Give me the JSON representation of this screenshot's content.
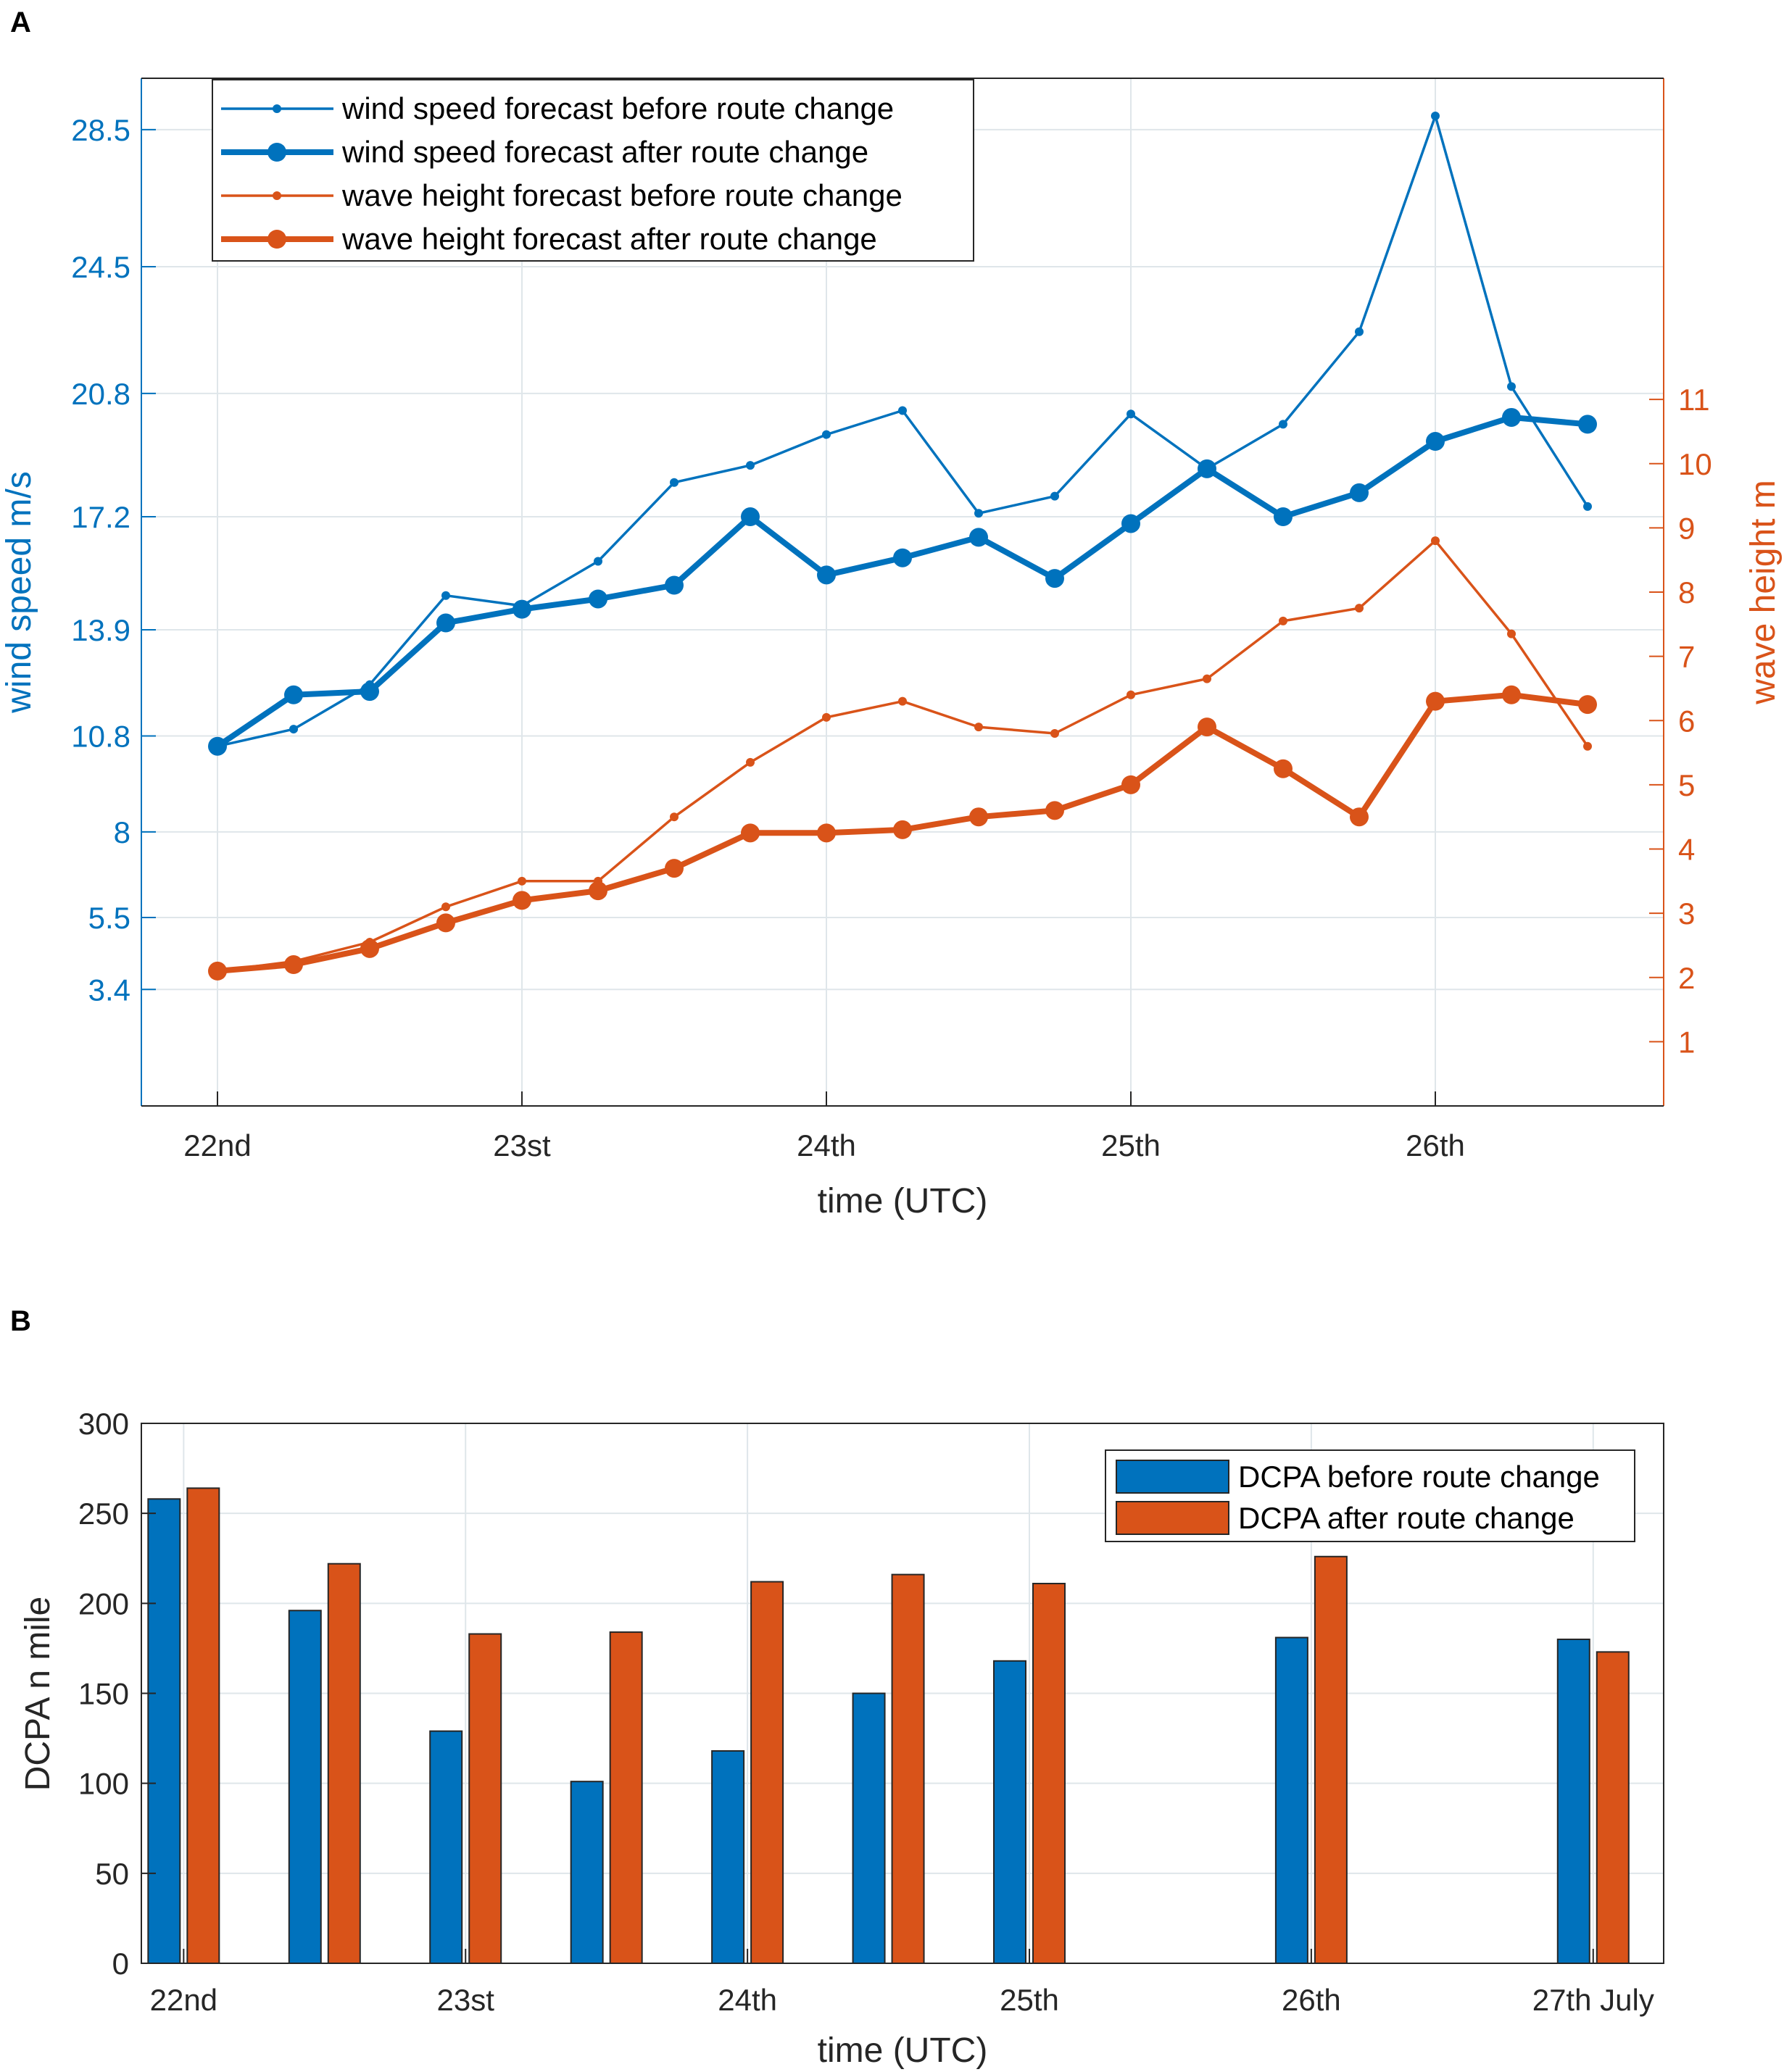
{
  "chart_data": [
    {
      "panel": "A",
      "type": "line",
      "xlabel": "time (UTC)",
      "ylabel_left": "wind speed m/s",
      "ylabel_right": "wave height m",
      "grid": true,
      "xlim": [
        21.75,
        26.75
      ],
      "ylim_left": [
        0,
        30
      ],
      "ylim_right": [
        0,
        16
      ],
      "x_ticks": [
        22,
        23,
        24,
        25,
        26
      ],
      "x_tick_labels": [
        "22nd",
        "23st",
        "24th",
        "25th",
        "26th"
      ],
      "y_left_ticks": [
        3.4,
        5.5,
        8,
        10.8,
        13.9,
        17.2,
        20.8,
        24.5,
        28.5
      ],
      "y_left_tick_labels": [
        "3.4",
        "5.5",
        "8",
        "10.8",
        "13.9",
        "17.2",
        "20.8",
        "24.5",
        "28.5"
      ],
      "y_right_ticks": [
        1,
        2,
        3,
        4,
        5,
        6,
        7,
        8,
        9,
        10,
        11
      ],
      "y_right_tick_labels": [
        "1",
        "2",
        "3",
        "4",
        "5",
        "6",
        "7",
        "8",
        "9",
        "10",
        "11"
      ],
      "legend_position": "top-left",
      "x": [
        22,
        22.25,
        22.5,
        22.75,
        23,
        23.25,
        23.5,
        23.75,
        24,
        24.25,
        24.5,
        24.75,
        25,
        25.25,
        25.5,
        25.75,
        26,
        26.25,
        26.5
      ],
      "series": [
        {
          "name": "wind speed forecast before route change",
          "axis": "left",
          "color": "#0072BD",
          "weight": "thin",
          "values": [
            10.5,
            11.0,
            12.3,
            14.9,
            14.6,
            15.9,
            18.2,
            18.7,
            19.6,
            20.3,
            17.3,
            17.8,
            20.2,
            18.6,
            19.9,
            22.6,
            28.9,
            21.0,
            17.5
          ]
        },
        {
          "name": "wind speed forecast after route change",
          "axis": "left",
          "color": "#0072BD",
          "weight": "thick",
          "values": [
            10.5,
            12.0,
            12.1,
            14.1,
            14.5,
            14.8,
            15.2,
            17.2,
            15.5,
            16.0,
            16.6,
            15.4,
            17.0,
            18.6,
            17.2,
            17.9,
            19.4,
            20.1,
            19.9
          ]
        },
        {
          "name": "wave height forecast before route change",
          "axis": "right",
          "color": "#D95319",
          "weight": "thin",
          "values": [
            2.1,
            2.25,
            2.55,
            3.1,
            3.5,
            3.5,
            4.5,
            5.35,
            6.05,
            6.3,
            5.9,
            5.8,
            6.4,
            6.65,
            7.55,
            7.75,
            8.8,
            7.35,
            5.6
          ]
        },
        {
          "name": "wave height forecast after route change",
          "axis": "right",
          "color": "#D95319",
          "weight": "thick",
          "values": [
            2.1,
            2.2,
            2.45,
            2.85,
            3.2,
            3.35,
            3.7,
            4.25,
            4.25,
            4.3,
            4.5,
            4.6,
            5.0,
            5.9,
            5.25,
            4.5,
            6.3,
            6.4,
            6.25
          ]
        }
      ]
    },
    {
      "panel": "B",
      "type": "bar",
      "xlabel": "time (UTC)",
      "ylabel": "DCPA n mile",
      "grid": true,
      "ylim": [
        0,
        300
      ],
      "xlim": [
        21.85,
        27.25
      ],
      "y_ticks": [
        0,
        50,
        100,
        150,
        200,
        250,
        300
      ],
      "y_tick_labels": [
        "0",
        "50",
        "100",
        "150",
        "200",
        "250",
        "300"
      ],
      "x_ticks": [
        22,
        23,
        24,
        25,
        26,
        27
      ],
      "x_tick_labels": [
        "22nd",
        "23st",
        "24th",
        "25th",
        "26th",
        "27th July"
      ],
      "legend_position": "top-right",
      "x": [
        22,
        22.5,
        23,
        23.5,
        24,
        24.5,
        25,
        26,
        27
      ],
      "series": [
        {
          "name": "DCPA before route change",
          "color": "#0072BD",
          "values": [
            258,
            196,
            129,
            101,
            118,
            150,
            168,
            181,
            180
          ]
        },
        {
          "name": "DCPA after route change",
          "color": "#D95319",
          "values": [
            264,
            222,
            183,
            184,
            212,
            216,
            211,
            226,
            173
          ]
        }
      ]
    }
  ]
}
